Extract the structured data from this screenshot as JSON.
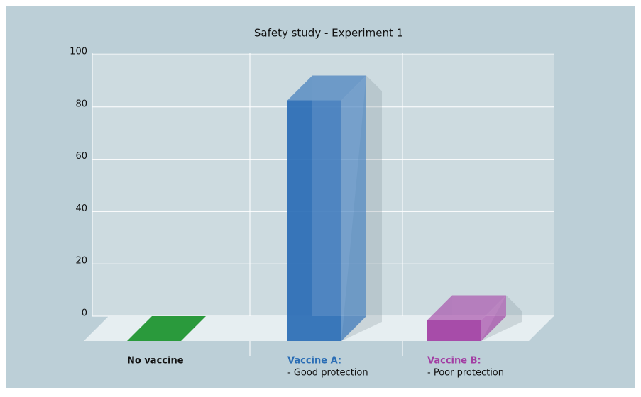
{
  "chart_data": {
    "type": "bar3d",
    "title": "Safety study - Experiment 1",
    "categories": [
      [
        "No vaccine"
      ],
      [
        "Vaccine A:",
        "- Good protection"
      ],
      [
        "Vaccine B:",
        "- Poor protection"
      ]
    ],
    "values": [
      0,
      92,
      8
    ],
    "colors": [
      "#2a9a3c",
      "#2a6db5",
      "#a23ea3"
    ],
    "label_colors": [
      "#111111",
      "#2a6db5",
      "#a23ea3"
    ],
    "ylim": [
      0,
      100
    ],
    "yticks": [
      0,
      20,
      40,
      60,
      80,
      100
    ],
    "grid": true
  }
}
